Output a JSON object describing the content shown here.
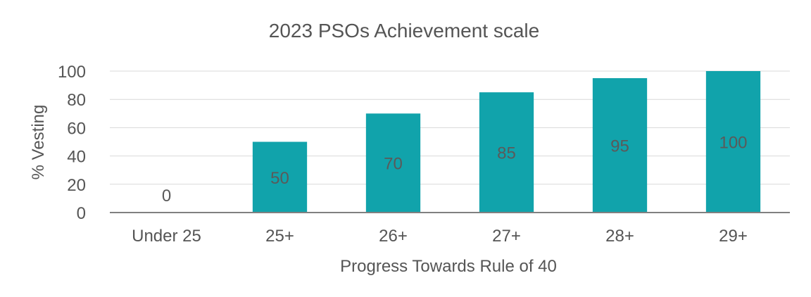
{
  "chart_data": {
    "type": "bar",
    "title": "2023 PSOs Achievement scale",
    "xlabel": "Progress Towards Rule of 40",
    "ylabel": "% Vesting",
    "categories": [
      "Under 25",
      "25+",
      "26+",
      "27+",
      "28+",
      "29+"
    ],
    "values": [
      0,
      50,
      70,
      85,
      95,
      100
    ],
    "data_labels": [
      "0",
      "50",
      "70",
      "85",
      "95",
      "100"
    ],
    "ylim": [
      0,
      100
    ],
    "yticks": [
      0,
      20,
      40,
      60,
      80,
      100
    ],
    "grid": true,
    "legend": false,
    "colors": {
      "bar": "#11a3ab",
      "grid": "#d9d9d9",
      "axis": "#808080",
      "text": "#555555"
    }
  }
}
